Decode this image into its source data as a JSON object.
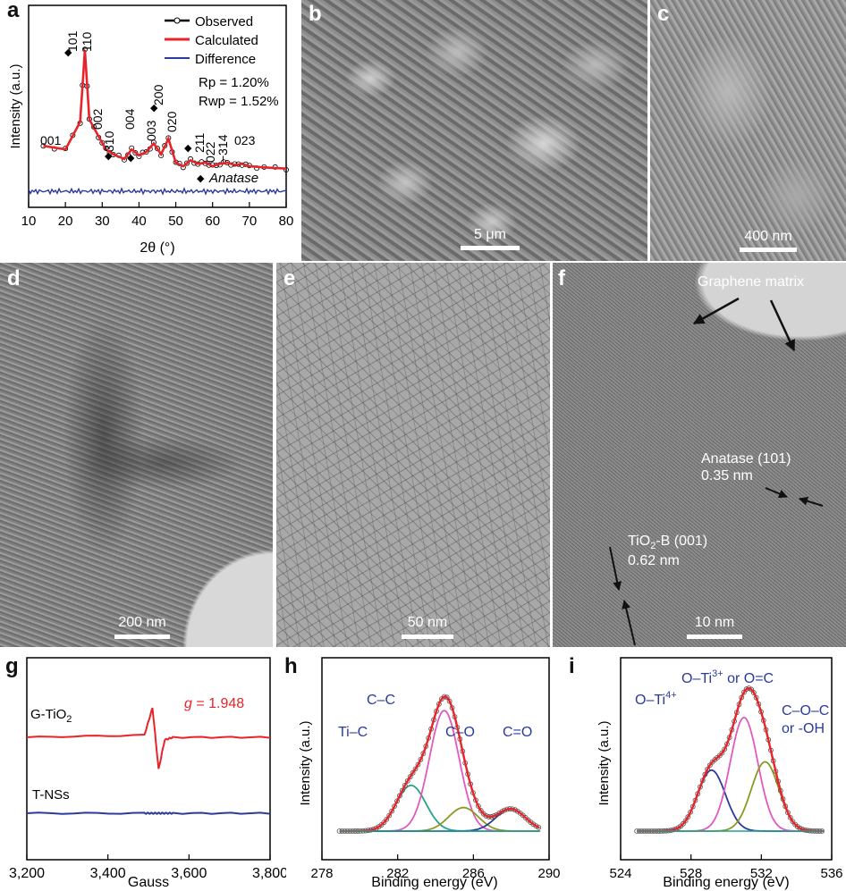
{
  "panels": {
    "a": {
      "label": "a",
      "legend": [
        "Observed",
        "Calculated",
        "Difference"
      ],
      "fit": [
        "Rp = 1.20%",
        "Rwp = 1.52%"
      ],
      "anatase_note": "Anatase",
      "peaks": [
        "001",
        "101",
        "110",
        "002",
        "310",
        "004",
        "003",
        "200",
        "020",
        "211",
        "022",
        "−314",
        "023"
      ]
    },
    "b": {
      "label": "b",
      "scale": "5 μm"
    },
    "c": {
      "label": "c",
      "scale": "400 nm"
    },
    "d": {
      "label": "d",
      "scale": "200 nm"
    },
    "e": {
      "label": "e",
      "scale": "50 nm"
    },
    "f": {
      "label": "f",
      "scale": "10 nm",
      "graphene": "Graphene matrix",
      "anatase_line1": "Anatase (101)",
      "anatase_line2": "0.35 nm",
      "tio2_pre": "TiO",
      "tio2_sub": "2",
      "tio2_post": "-B (001)",
      "tio2_line2": "0.62 nm"
    },
    "g": {
      "label": "g",
      "gtio2_pre": "G-TiO",
      "gtio2_sub": "2",
      "tnss": "T-NSs",
      "gval_pre": "g",
      "gval_post": " = 1.948"
    },
    "h": {
      "label": "h",
      "peaks": [
        "Ti–C",
        "C–C",
        "C–O",
        "C=O"
      ]
    },
    "i": {
      "label": "i",
      "oti4_pre": "O–Ti",
      "oti4_sup": "4+",
      "oti3_pre": "O–Ti",
      "oti3_sup": "3+",
      "oti3_post": " or O=C",
      "coc1": "C–O–C",
      "coc2": "or -OH"
    }
  },
  "colors": {
    "observed": "#000000",
    "calculated": "#e8232a",
    "difference": "#2b3a9c",
    "gtio2": "#e8232a",
    "tnss": "#2b3a9c"
  },
  "chart_data": [
    {
      "id": "a",
      "type": "line",
      "xlabel": "2θ (°)",
      "ylabel": "Intensity (a.u.)",
      "xlim": [
        10,
        80
      ],
      "xticks": [
        "10",
        "20",
        "30",
        "40",
        "50",
        "60",
        "70",
        "80"
      ],
      "x": [
        14,
        20,
        24,
        25.3,
        26.5,
        29,
        31,
        33,
        36,
        38,
        40,
        42,
        44,
        46,
        48,
        50,
        52,
        54,
        56,
        58,
        60,
        62,
        64,
        66,
        68,
        70,
        74,
        80
      ],
      "series": [
        {
          "name": "Observed",
          "values": [
            0.2,
            0.17,
            0.4,
            1.0,
            0.42,
            0.28,
            0.17,
            0.13,
            0.09,
            0.17,
            0.12,
            0.15,
            0.22,
            0.13,
            0.26,
            0.06,
            0.03,
            0.08,
            0.05,
            0.06,
            0.03,
            0.05,
            0.06,
            0.04,
            0.05,
            0.03,
            0.02,
            0.01
          ]
        }
      ]
    },
    {
      "id": "g",
      "type": "line",
      "xlabel": "Gauss",
      "xlim": [
        3200,
        3800
      ],
      "xticks": [
        "3,200",
        "3,400",
        "3,600",
        "3,800"
      ],
      "x": [
        3200,
        3490,
        3510,
        3525,
        3540,
        3560,
        3800
      ],
      "series": [
        {
          "name": "G-TiO2",
          "values": [
            0,
            0.04,
            0.55,
            -0.6,
            -0.05,
            0,
            0
          ]
        },
        {
          "name": "T-NSs",
          "values": [
            0,
            0,
            0,
            0,
            0,
            0,
            0
          ]
        }
      ]
    },
    {
      "id": "h",
      "type": "line",
      "xlabel": "Binding energy (eV)",
      "ylabel": "Intensity (a.u.)",
      "xlim": [
        278,
        291
      ],
      "xticks": [
        "278",
        "282",
        "286",
        "290"
      ],
      "peaks": [
        {
          "label": "Ti–C",
          "center": 283.1,
          "height": 0.33
        },
        {
          "label": "C–C",
          "center": 285.0,
          "height": 0.87
        },
        {
          "label": "C–O",
          "center": 286.1,
          "height": 0.17
        },
        {
          "label": "C=O",
          "center": 288.8,
          "height": 0.16
        }
      ]
    },
    {
      "id": "i",
      "type": "line",
      "xlabel": "Binding energy (eV)",
      "ylabel": "Intensity (a.u.)",
      "xlim": [
        524,
        537
      ],
      "xticks": [
        "524",
        "528",
        "532",
        "536"
      ],
      "peaks": [
        {
          "label": "O–Ti4+",
          "center": 529.6,
          "height": 0.44
        },
        {
          "label": "O–Ti3+ or O=C",
          "center": 531.6,
          "height": 0.82
        },
        {
          "label": "C–O–C or -OH",
          "center": 532.9,
          "height": 0.5
        }
      ]
    }
  ]
}
